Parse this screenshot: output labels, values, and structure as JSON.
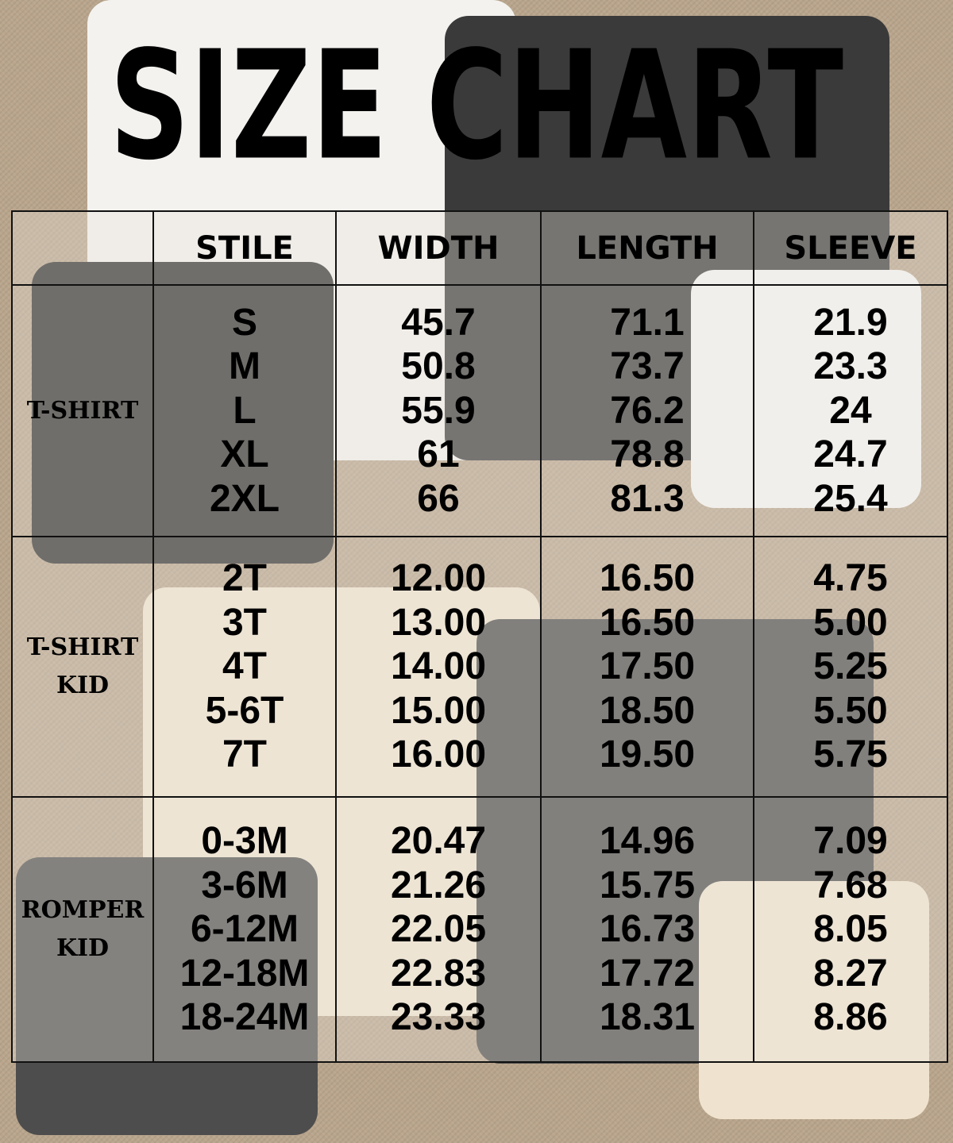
{
  "title": "SIZE CHART",
  "table": {
    "headers": [
      "",
      "STILE",
      "WIDTH",
      "LENGTH",
      "SLEEVE"
    ],
    "sections": [
      {
        "label": "T-SHIRT",
        "sizes": [
          "S",
          "M",
          "L",
          "XL",
          "2XL"
        ],
        "width": [
          "45.7",
          "50.8",
          "55.9",
          "61",
          "66"
        ],
        "length": [
          "71.1",
          "73.7",
          "76.2",
          "78.8",
          "81.3"
        ],
        "sleeve": [
          "21.9",
          "23.3",
          "24",
          "24.7",
          "25.4"
        ]
      },
      {
        "label": "T-SHIRT KID",
        "sizes": [
          "2T",
          "3T",
          "4T",
          "5-6T",
          "7T"
        ],
        "width": [
          "12.00",
          "13.00",
          "14.00",
          "15.00",
          "16.00"
        ],
        "length": [
          "16.50",
          "16.50",
          "17.50",
          "18.50",
          "19.50"
        ],
        "sleeve": [
          "4.75",
          "5.00",
          "5.25",
          "5.50",
          "5.75"
        ]
      },
      {
        "label": "ROMPER KID",
        "sizes": [
          "0-3M",
          "3-6M",
          "6-12M",
          "12-18M",
          "18-24M"
        ],
        "width": [
          "20.47",
          "21.26",
          "22.05",
          "22.83",
          "23.33"
        ],
        "length": [
          "14.96",
          "15.75",
          "16.73",
          "17.72",
          "18.31"
        ],
        "sleeve": [
          "7.09",
          "7.68",
          "8.05",
          "8.27",
          "8.86"
        ]
      }
    ]
  }
}
